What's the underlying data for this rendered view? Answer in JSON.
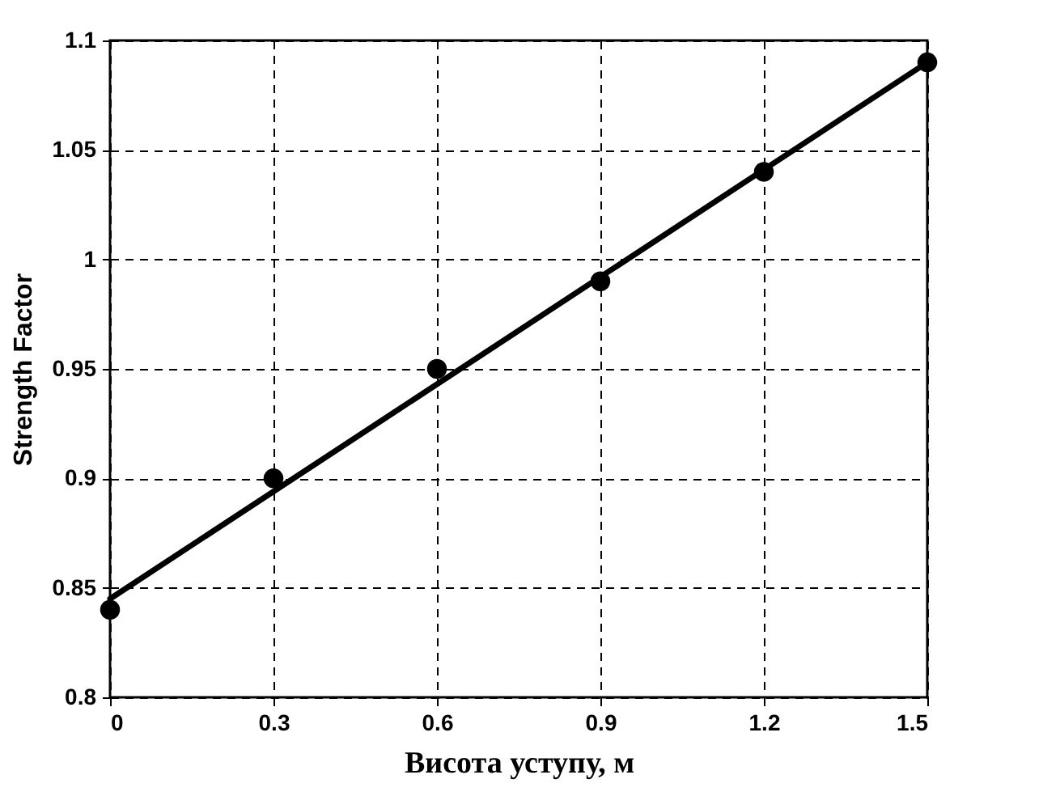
{
  "chart_data": {
    "type": "scatter",
    "xlabel": "Висота уступу, м",
    "ylabel": "Strength Factor",
    "xlim": [
      0,
      1.5
    ],
    "xticks": [
      0,
      0.3,
      0.6,
      0.9,
      1.2,
      1.5
    ],
    "ylim": [
      0.8,
      1.1
    ],
    "yticks": [
      0.8,
      0.85,
      0.9,
      0.95,
      1,
      1.05,
      1.1
    ],
    "grid": true,
    "marker": "circle",
    "series": [
      {
        "type": "line",
        "color": "#000000",
        "x": [
          0,
          1.5
        ],
        "values": [
          0.845,
          1.09
        ],
        "marker": "none",
        "line_style": "solid"
      },
      {
        "color": "#000000",
        "x": [
          0,
          0.3,
          0.6,
          0.9,
          1.2,
          1.5
        ],
        "values": [
          0.84,
          0.9,
          0.95,
          0.99,
          1.04,
          1.09
        ]
      }
    ]
  }
}
